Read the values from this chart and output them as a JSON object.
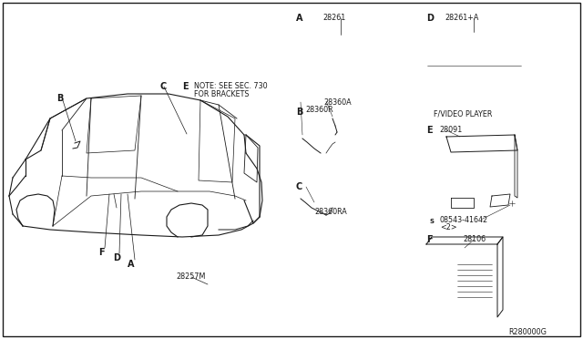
{
  "bg_color": "#ffffff",
  "line_color": "#1a1a1a",
  "text_color": "#1a1a1a",
  "part_numbers": {
    "28261": "28261",
    "28261A": "28261+A",
    "28360A": "28360A",
    "28360R": "28360R",
    "28360RA": "28360RA",
    "28257M": "28257M",
    "28091": "28091",
    "08543": "08543-41642",
    "08543_2": "<2>",
    "28106": "28106",
    "R280000G": "R280000G"
  },
  "notes": {
    "note1": "NOTE: SEE SEC. 730",
    "note2": "FOR BRACKETS"
  },
  "labels": {
    "fvideo": "F/VIDEO PLAYER",
    "A": "A",
    "B": "B",
    "C": "C",
    "D": "D",
    "E": "E",
    "F": "F",
    "S": "S"
  },
  "font_size": 7.0,
  "small_font": 5.8
}
